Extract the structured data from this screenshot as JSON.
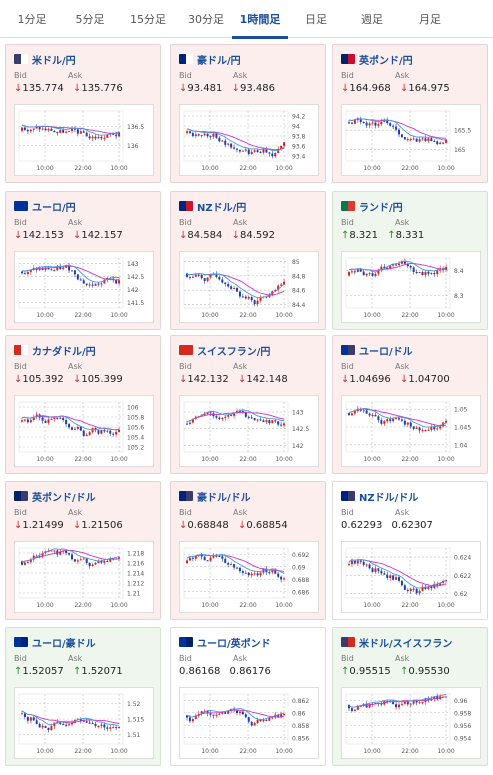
{
  "tabs": [
    {
      "label": "1分足"
    },
    {
      "label": "5分足"
    },
    {
      "label": "15分足"
    },
    {
      "label": "30分足"
    },
    {
      "label": "1時間足"
    },
    {
      "label": "日足"
    },
    {
      "label": "週足"
    },
    {
      "label": "月足"
    }
  ],
  "active_tab": "1時間足",
  "labels": {
    "bid": "Bid",
    "ask": "Ask"
  },
  "colors": {
    "up": "#2a8a2a",
    "down": "#d03030",
    "sma": "#cc33cc",
    "accent": "#1a4f9c"
  },
  "cards": [
    {
      "name": "米ドル/円",
      "trend": "down",
      "bid": "135.774",
      "ask": "135.776",
      "flags": [
        "#3c3b6e",
        "#ffffff"
      ],
      "chart_data": {
        "type": "candlestick",
        "x_ticks": [
          "10:00",
          "22:00",
          "10:00"
        ],
        "y_ticks": [
          "136.5",
          "136"
        ],
        "ylim": [
          135.6,
          136.9
        ]
      }
    },
    {
      "name": "豪ドル/円",
      "trend": "down",
      "bid": "93.481",
      "ask": "93.486",
      "flags": [
        "#00247d",
        "#ffffff"
      ],
      "chart_data": {
        "type": "candlestick",
        "x_ticks": [
          "10:00",
          "22:00",
          "10:00"
        ],
        "y_ticks": [
          "94.2",
          "94",
          "93.8",
          "93.6",
          "93.4"
        ],
        "ylim": [
          93.3,
          94.3
        ]
      }
    },
    {
      "name": "英ポンド/円",
      "trend": "down",
      "bid": "164.968",
      "ask": "164.975",
      "flags": [
        "#012169",
        "#c8102e"
      ],
      "chart_data": {
        "type": "candlestick",
        "x_ticks": [
          "10:00",
          "22:00",
          "10:00"
        ],
        "y_ticks": [
          "165.5",
          "165"
        ],
        "ylim": [
          164.7,
          166.0
        ]
      }
    },
    {
      "name": "ユーロ/円",
      "trend": "down",
      "bid": "142.153",
      "ask": "142.157",
      "flags": [
        "#003399",
        "#003399"
      ],
      "chart_data": {
        "type": "candlestick",
        "x_ticks": [
          "10:00",
          "22:00",
          "10:00"
        ],
        "y_ticks": [
          "143",
          "142.5",
          "142",
          "141.5"
        ],
        "ylim": [
          141.3,
          143.2
        ]
      }
    },
    {
      "name": "NZドル/円",
      "trend": "down",
      "bid": "84.584",
      "ask": "84.592",
      "flags": [
        "#00247d",
        "#cc142b"
      ],
      "chart_data": {
        "type": "candlestick",
        "x_ticks": [
          "10:00",
          "22:00",
          "10:00"
        ],
        "y_ticks": [
          "85",
          "84.8",
          "84.6",
          "84.4"
        ],
        "ylim": [
          84.35,
          85.05
        ]
      }
    },
    {
      "name": "ランド/円",
      "trend": "up",
      "bid": "8.321",
      "ask": "8.331",
      "flags": [
        "#007a4d",
        "#de3831"
      ],
      "chart_data": {
        "type": "candlestick",
        "x_ticks": [
          "10:00",
          "22:00",
          "10:00"
        ],
        "y_ticks": [
          "8.4",
          "8.3"
        ],
        "ylim": [
          8.25,
          8.45
        ]
      }
    },
    {
      "name": "カナダドル/円",
      "trend": "down",
      "bid": "105.392",
      "ask": "105.399",
      "flags": [
        "#d52b1e",
        "#ffffff"
      ],
      "chart_data": {
        "type": "candlestick",
        "x_ticks": [
          "10:00",
          "22:00",
          "10:00"
        ],
        "y_ticks": [
          "106",
          "105.8",
          "105.6",
          "105.4",
          "105.2"
        ],
        "ylim": [
          105.1,
          106.1
        ]
      }
    },
    {
      "name": "スイスフラン/円",
      "trend": "down",
      "bid": "142.132",
      "ask": "142.148",
      "flags": [
        "#d52b1e",
        "#d52b1e"
      ],
      "chart_data": {
        "type": "candlestick",
        "x_ticks": [
          "10:00",
          "22:00",
          "10:00"
        ],
        "y_ticks": [
          "143",
          "142.5",
          "142"
        ],
        "ylim": [
          141.8,
          143.3
        ]
      }
    },
    {
      "name": "ユーロ/ドル",
      "trend": "down",
      "bid": "1.04696",
      "ask": "1.04700",
      "flags": [
        "#003399",
        "#3c3b6e"
      ],
      "chart_data": {
        "type": "candlestick",
        "x_ticks": [
          "10:00",
          "22:00",
          "10:00"
        ],
        "y_ticks": [
          "1.05",
          "1.045",
          "1.04"
        ],
        "ylim": [
          1.038,
          1.052
        ]
      }
    },
    {
      "name": "英ポンド/ドル",
      "trend": "down",
      "bid": "1.21499",
      "ask": "1.21506",
      "flags": [
        "#012169",
        "#3c3b6e"
      ],
      "chart_data": {
        "type": "candlestick",
        "x_ticks": [
          "10:00",
          "22:00",
          "10:00"
        ],
        "y_ticks": [
          "1.218",
          "1.216",
          "1.214",
          "1.212",
          "1.21"
        ],
        "ylim": [
          1.209,
          1.219
        ]
      }
    },
    {
      "name": "豪ドル/ドル",
      "trend": "down",
      "bid": "0.68848",
      "ask": "0.68854",
      "flags": [
        "#00247d",
        "#3c3b6e"
      ],
      "chart_data": {
        "type": "candlestick",
        "x_ticks": [
          "10:00",
          "22:00",
          "10:00"
        ],
        "y_ticks": [
          "0.692",
          "0.69",
          "0.688",
          "0.686"
        ],
        "ylim": [
          0.685,
          0.693
        ]
      }
    },
    {
      "name": "NZドル/ドル",
      "trend": "flat",
      "bid": "0.62293",
      "ask": "0.62307",
      "flags": [
        "#00247d",
        "#3c3b6e"
      ],
      "chart_data": {
        "type": "candlestick",
        "x_ticks": [
          "10:00",
          "22:00",
          "10:00"
        ],
        "y_ticks": [
          "0.624",
          "0.622",
          "0.62"
        ],
        "ylim": [
          0.6195,
          0.625
        ]
      }
    },
    {
      "name": "ユーロ/豪ドル",
      "trend": "up",
      "bid": "1.52057",
      "ask": "1.52071",
      "flags": [
        "#003399",
        "#00247d"
      ],
      "chart_data": {
        "type": "candlestick",
        "x_ticks": [
          "10:00",
          "22:00",
          "10:00"
        ],
        "y_ticks": [
          "1.52",
          "1.515",
          "1.51"
        ],
        "ylim": [
          1.507,
          1.523
        ]
      }
    },
    {
      "name": "ユーロ/英ポンド",
      "trend": "flat",
      "bid": "0.86168",
      "ask": "0.86176",
      "flags": [
        "#003399",
        "#012169"
      ],
      "chart_data": {
        "type": "candlestick",
        "x_ticks": [
          "10:00",
          "22:00",
          "10:00"
        ],
        "y_ticks": [
          "0.862",
          "0.86",
          "0.858",
          "0.856"
        ],
        "ylim": [
          0.855,
          0.863
        ]
      }
    },
    {
      "name": "米ドル/スイスフラン",
      "trend": "up",
      "bid": "0.95515",
      "ask": "0.95530",
      "flags": [
        "#3c3b6e",
        "#d52b1e"
      ],
      "chart_data": {
        "type": "candlestick",
        "x_ticks": [
          "10:00",
          "22:00",
          "10:00"
        ],
        "y_ticks": [
          "0.96",
          "0.958",
          "0.956",
          "0.954"
        ],
        "ylim": [
          0.953,
          0.961
        ]
      }
    }
  ]
}
